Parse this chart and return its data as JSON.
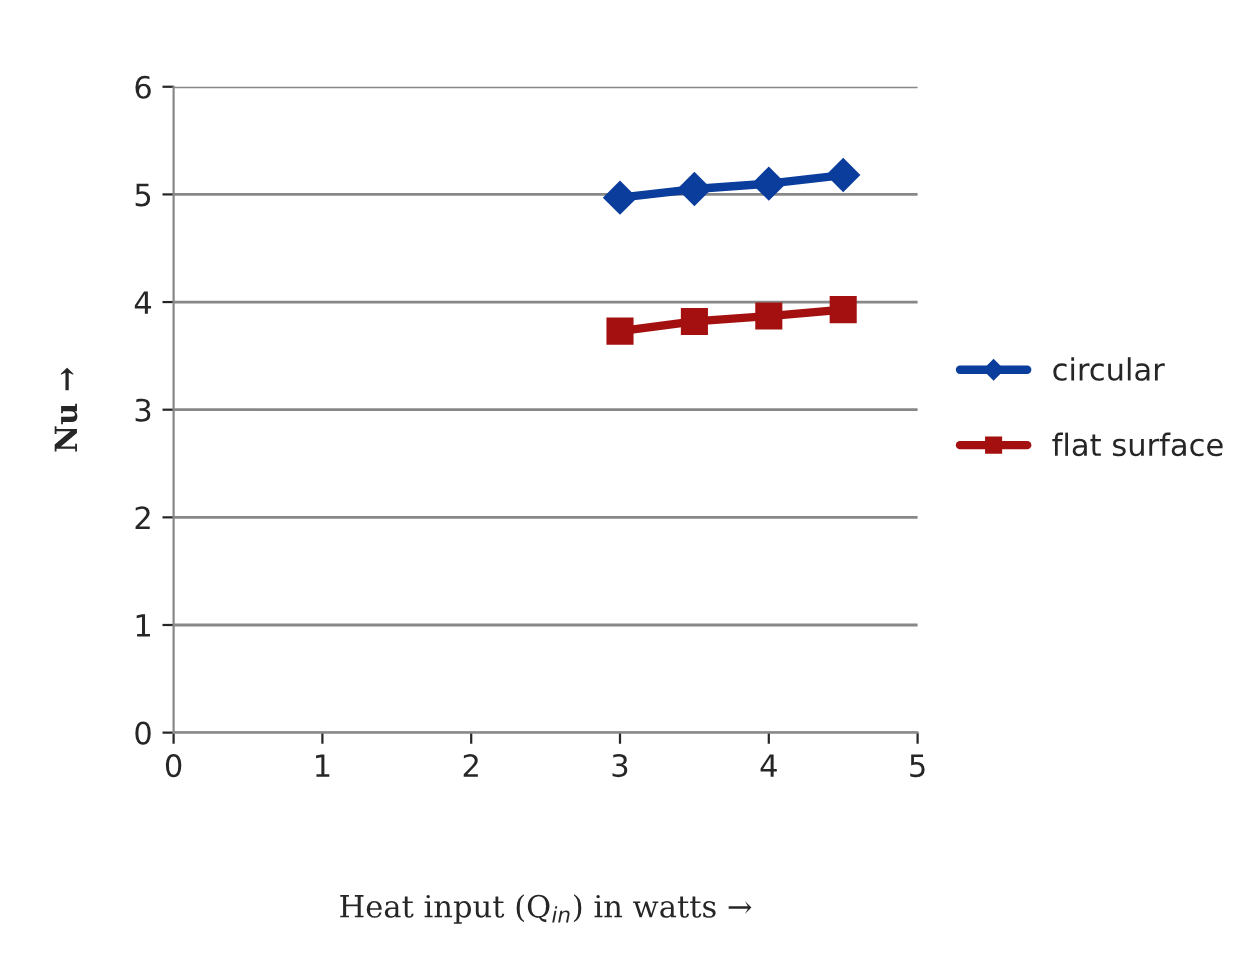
{
  "chart_data": {
    "type": "line",
    "xlabel": "Heat input (Q$_{in}$) in watts →",
    "ylabel": "Nu →",
    "x": [
      3,
      3.5,
      4,
      4.5
    ],
    "series": [
      {
        "name": "circular",
        "color": "#0b3d9c",
        "values": [
          4.97,
          5.05,
          5.1,
          5.18
        ],
        "marker": "diamond"
      },
      {
        "name": "flat surface",
        "color": "#a3100f",
        "values": [
          3.73,
          3.82,
          3.87,
          3.93
        ],
        "marker": "square"
      }
    ],
    "xlim": [
      0,
      5
    ],
    "xticks": [
      0,
      1,
      2,
      3,
      4,
      5
    ],
    "ylim": [
      0,
      6
    ],
    "yticks": [
      0,
      1,
      2,
      3,
      4,
      5,
      6
    ],
    "grid": "y",
    "legend": "right",
    "line_style": "solid"
  }
}
